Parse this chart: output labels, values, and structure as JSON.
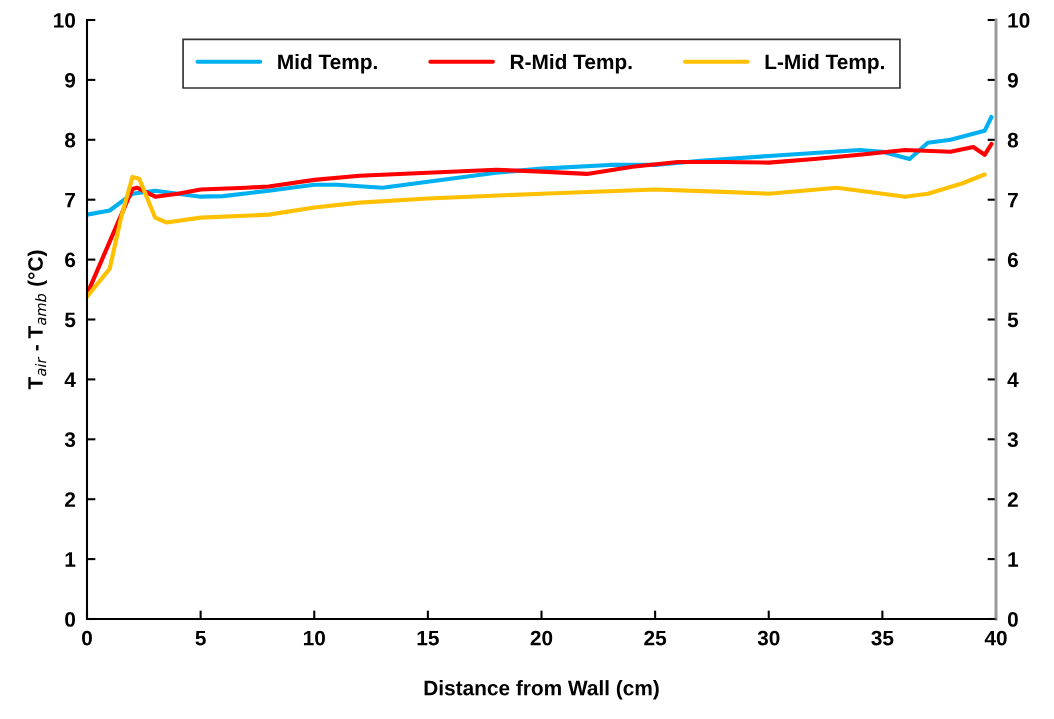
{
  "chart_data": {
    "type": "line",
    "xlabel": "Distance from Wall (cm)",
    "ylabel": "T$_{air}$ - T$_{amb}$ (°C)",
    "xlim": [
      0,
      40
    ],
    "xticks": [
      0,
      5,
      10,
      15,
      20,
      25,
      30,
      35,
      40
    ],
    "ylim": [
      0,
      10
    ],
    "yticks": [
      0,
      1,
      2,
      3,
      4,
      5,
      6,
      7,
      8,
      9,
      10
    ],
    "y2lim": [
      0,
      10
    ],
    "y2ticks": [
      0,
      1,
      2,
      3,
      4,
      5,
      6,
      7,
      8,
      9,
      10
    ],
    "grid": false,
    "legend": "top",
    "marker": "none",
    "line_style": "solid",
    "series": [
      {
        "name": "Mid Temp.",
        "color": "#00b0f0",
        "x": [
          0,
          1,
          2,
          3,
          4,
          5,
          6,
          8,
          10,
          11,
          13,
          15,
          18,
          20,
          23,
          25,
          27,
          30,
          32,
          34,
          35,
          36.2,
          37,
          38,
          39,
          39.5,
          39.8
        ],
        "values": [
          6.75,
          6.82,
          7.1,
          7.15,
          7.1,
          7.05,
          7.06,
          7.15,
          7.25,
          7.25,
          7.2,
          7.3,
          7.45,
          7.52,
          7.58,
          7.58,
          7.65,
          7.73,
          7.78,
          7.83,
          7.8,
          7.68,
          7.95,
          8.0,
          8.1,
          8.15,
          8.38
        ]
      },
      {
        "name": "R-Mid Temp.",
        "color": "#ff0000",
        "x": [
          0,
          1,
          2,
          2.2,
          3,
          4,
          5,
          7,
          8,
          10,
          12,
          15,
          18,
          20,
          22,
          24,
          26,
          28,
          30,
          32,
          34,
          36,
          38,
          39,
          39.5,
          39.8
        ],
        "values": [
          5.42,
          6.3,
          7.18,
          7.2,
          7.05,
          7.1,
          7.17,
          7.2,
          7.22,
          7.33,
          7.4,
          7.45,
          7.5,
          7.47,
          7.43,
          7.55,
          7.63,
          7.63,
          7.62,
          7.68,
          7.75,
          7.83,
          7.8,
          7.88,
          7.75,
          7.93
        ]
      },
      {
        "name": "L-Mid Temp.",
        "color": "#ffc000",
        "x": [
          0,
          1,
          1.5,
          2,
          2.3,
          3,
          3.5,
          5,
          8,
          10,
          12,
          15,
          20,
          25,
          28,
          30,
          33,
          36,
          37,
          38.5,
          39.5
        ],
        "values": [
          5.38,
          5.85,
          6.7,
          7.38,
          7.35,
          6.7,
          6.62,
          6.7,
          6.75,
          6.87,
          6.95,
          7.02,
          7.1,
          7.17,
          7.13,
          7.1,
          7.2,
          7.05,
          7.1,
          7.27,
          7.42
        ]
      }
    ]
  }
}
